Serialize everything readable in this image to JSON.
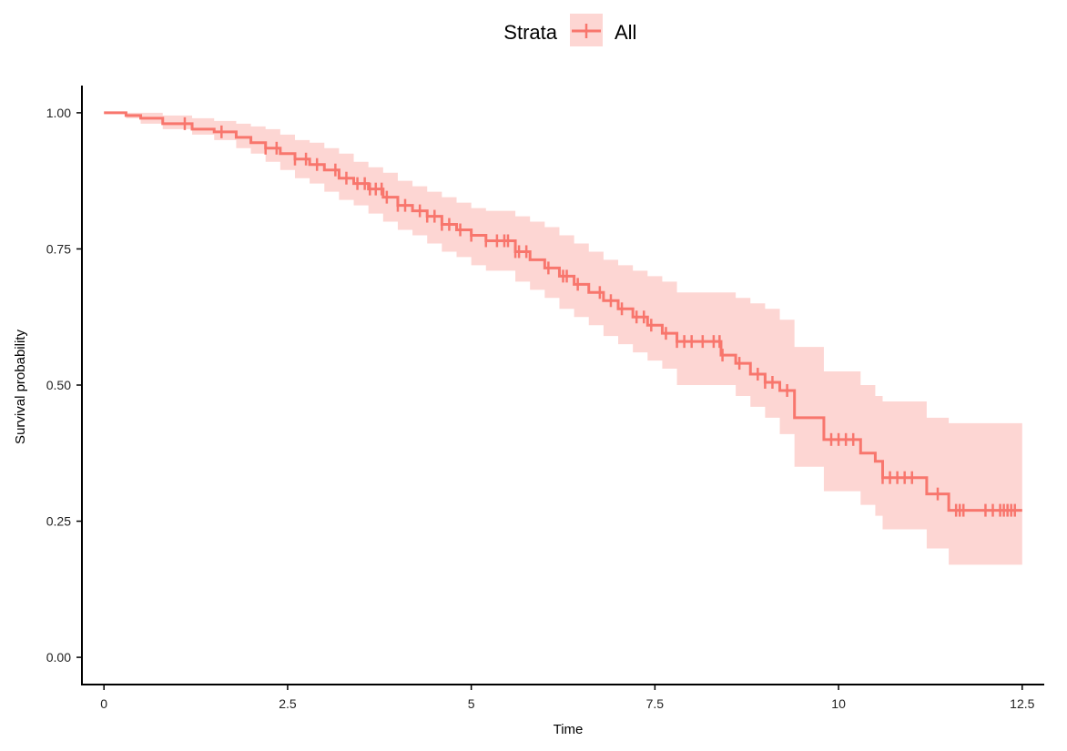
{
  "chart_data": {
    "type": "line",
    "subtype": "kaplan-meier",
    "title": "",
    "xlabel": "Time",
    "ylabel": "Survival probability",
    "xlim": [
      -0.3,
      12.8
    ],
    "ylim": [
      -0.05,
      1.05
    ],
    "x_ticks": [
      0,
      2.5,
      5,
      7.5,
      10,
      12.5
    ],
    "x_tick_labels": [
      "0",
      "2.5",
      "5",
      "7.5",
      "10",
      "12.5"
    ],
    "y_ticks": [
      0,
      0.25,
      0.5,
      0.75,
      1.0
    ],
    "y_tick_labels": [
      "0.00",
      "0.25",
      "0.50",
      "0.75",
      "1.00"
    ],
    "grid": false,
    "legend": {
      "title": "Strata",
      "position": "top",
      "entries": [
        "All"
      ]
    },
    "colors": {
      "line": "#F8766D",
      "band": "#F8766D"
    },
    "series": [
      {
        "name": "All",
        "step_x": [
          0,
          0.3,
          0.5,
          0.8,
          1.2,
          1.5,
          1.8,
          2.0,
          2.2,
          2.4,
          2.6,
          2.8,
          3.0,
          3.2,
          3.4,
          3.6,
          3.8,
          4.0,
          4.2,
          4.4,
          4.6,
          4.8,
          5.0,
          5.2,
          5.6,
          5.8,
          6.0,
          6.2,
          6.4,
          6.6,
          6.8,
          7.0,
          7.2,
          7.4,
          7.6,
          7.8,
          8.4,
          8.6,
          8.8,
          9.0,
          9.2,
          9.4,
          9.8,
          10.3,
          10.5,
          10.6,
          11.2,
          11.5,
          12.5
        ],
        "surv": [
          1.0,
          0.995,
          0.99,
          0.98,
          0.97,
          0.965,
          0.955,
          0.945,
          0.935,
          0.925,
          0.915,
          0.905,
          0.895,
          0.88,
          0.87,
          0.86,
          0.845,
          0.83,
          0.82,
          0.81,
          0.795,
          0.785,
          0.775,
          0.765,
          0.745,
          0.73,
          0.715,
          0.7,
          0.685,
          0.67,
          0.655,
          0.64,
          0.625,
          0.61,
          0.595,
          0.58,
          0.555,
          0.54,
          0.52,
          0.505,
          0.49,
          0.44,
          0.4,
          0.375,
          0.36,
          0.33,
          0.3,
          0.27,
          0.27
        ],
        "upper": [
          1.0,
          1.0,
          1.0,
          0.995,
          0.99,
          0.985,
          0.98,
          0.975,
          0.97,
          0.96,
          0.95,
          0.945,
          0.935,
          0.925,
          0.91,
          0.9,
          0.89,
          0.875,
          0.865,
          0.855,
          0.845,
          0.835,
          0.825,
          0.82,
          0.81,
          0.8,
          0.79,
          0.775,
          0.76,
          0.745,
          0.73,
          0.72,
          0.71,
          0.7,
          0.69,
          0.67,
          0.67,
          0.66,
          0.65,
          0.64,
          0.62,
          0.57,
          0.525,
          0.5,
          0.48,
          0.47,
          0.44,
          0.43,
          0.43
        ],
        "lower": [
          1.0,
          0.99,
          0.98,
          0.97,
          0.96,
          0.95,
          0.935,
          0.925,
          0.91,
          0.895,
          0.88,
          0.87,
          0.855,
          0.84,
          0.83,
          0.815,
          0.8,
          0.785,
          0.775,
          0.76,
          0.745,
          0.735,
          0.72,
          0.71,
          0.69,
          0.675,
          0.66,
          0.64,
          0.625,
          0.61,
          0.59,
          0.575,
          0.56,
          0.545,
          0.53,
          0.5,
          0.5,
          0.48,
          0.46,
          0.44,
          0.41,
          0.35,
          0.305,
          0.28,
          0.26,
          0.235,
          0.2,
          0.17,
          0.17
        ],
        "censor_x": [
          1.1,
          1.6,
          2.2,
          2.35,
          2.6,
          2.75,
          2.9,
          3.15,
          3.3,
          3.45,
          3.55,
          3.62,
          3.7,
          3.78,
          3.85,
          4.0,
          4.1,
          4.3,
          4.4,
          4.5,
          4.6,
          4.7,
          4.85,
          5.0,
          5.2,
          5.35,
          5.45,
          5.5,
          5.6,
          5.65,
          5.75,
          6.05,
          6.25,
          6.3,
          6.45,
          6.75,
          6.9,
          7.05,
          7.25,
          7.35,
          7.45,
          7.65,
          7.8,
          7.9,
          8.0,
          8.15,
          8.3,
          8.38,
          8.42,
          8.65,
          8.9,
          9.0,
          9.1,
          9.3,
          9.9,
          10.0,
          10.1,
          10.2,
          10.6,
          10.7,
          10.8,
          10.9,
          11.0,
          11.35,
          11.6,
          11.65,
          11.7,
          12.0,
          12.1,
          12.2,
          12.25,
          12.3,
          12.35,
          12.4
        ]
      }
    ]
  }
}
